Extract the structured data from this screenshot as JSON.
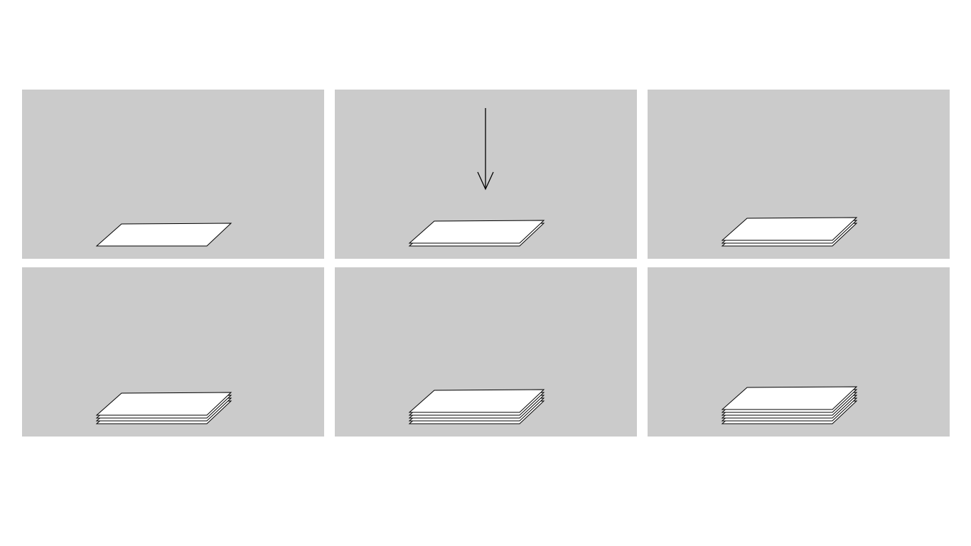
{
  "colors": {
    "background": "#ffffff",
    "panel": "#cbcbcb",
    "sheet_fill": "#ffffff",
    "sheet_stroke": "#000000",
    "arrow": "#000000"
  },
  "panels": [
    {
      "sheet_count": 1,
      "arrow": false
    },
    {
      "sheet_count": 2,
      "arrow": true
    },
    {
      "sheet_count": 3,
      "arrow": false
    },
    {
      "sheet_count": 4,
      "arrow": false
    },
    {
      "sheet_count": 5,
      "arrow": false
    },
    {
      "sheet_count": 6,
      "arrow": false
    }
  ]
}
